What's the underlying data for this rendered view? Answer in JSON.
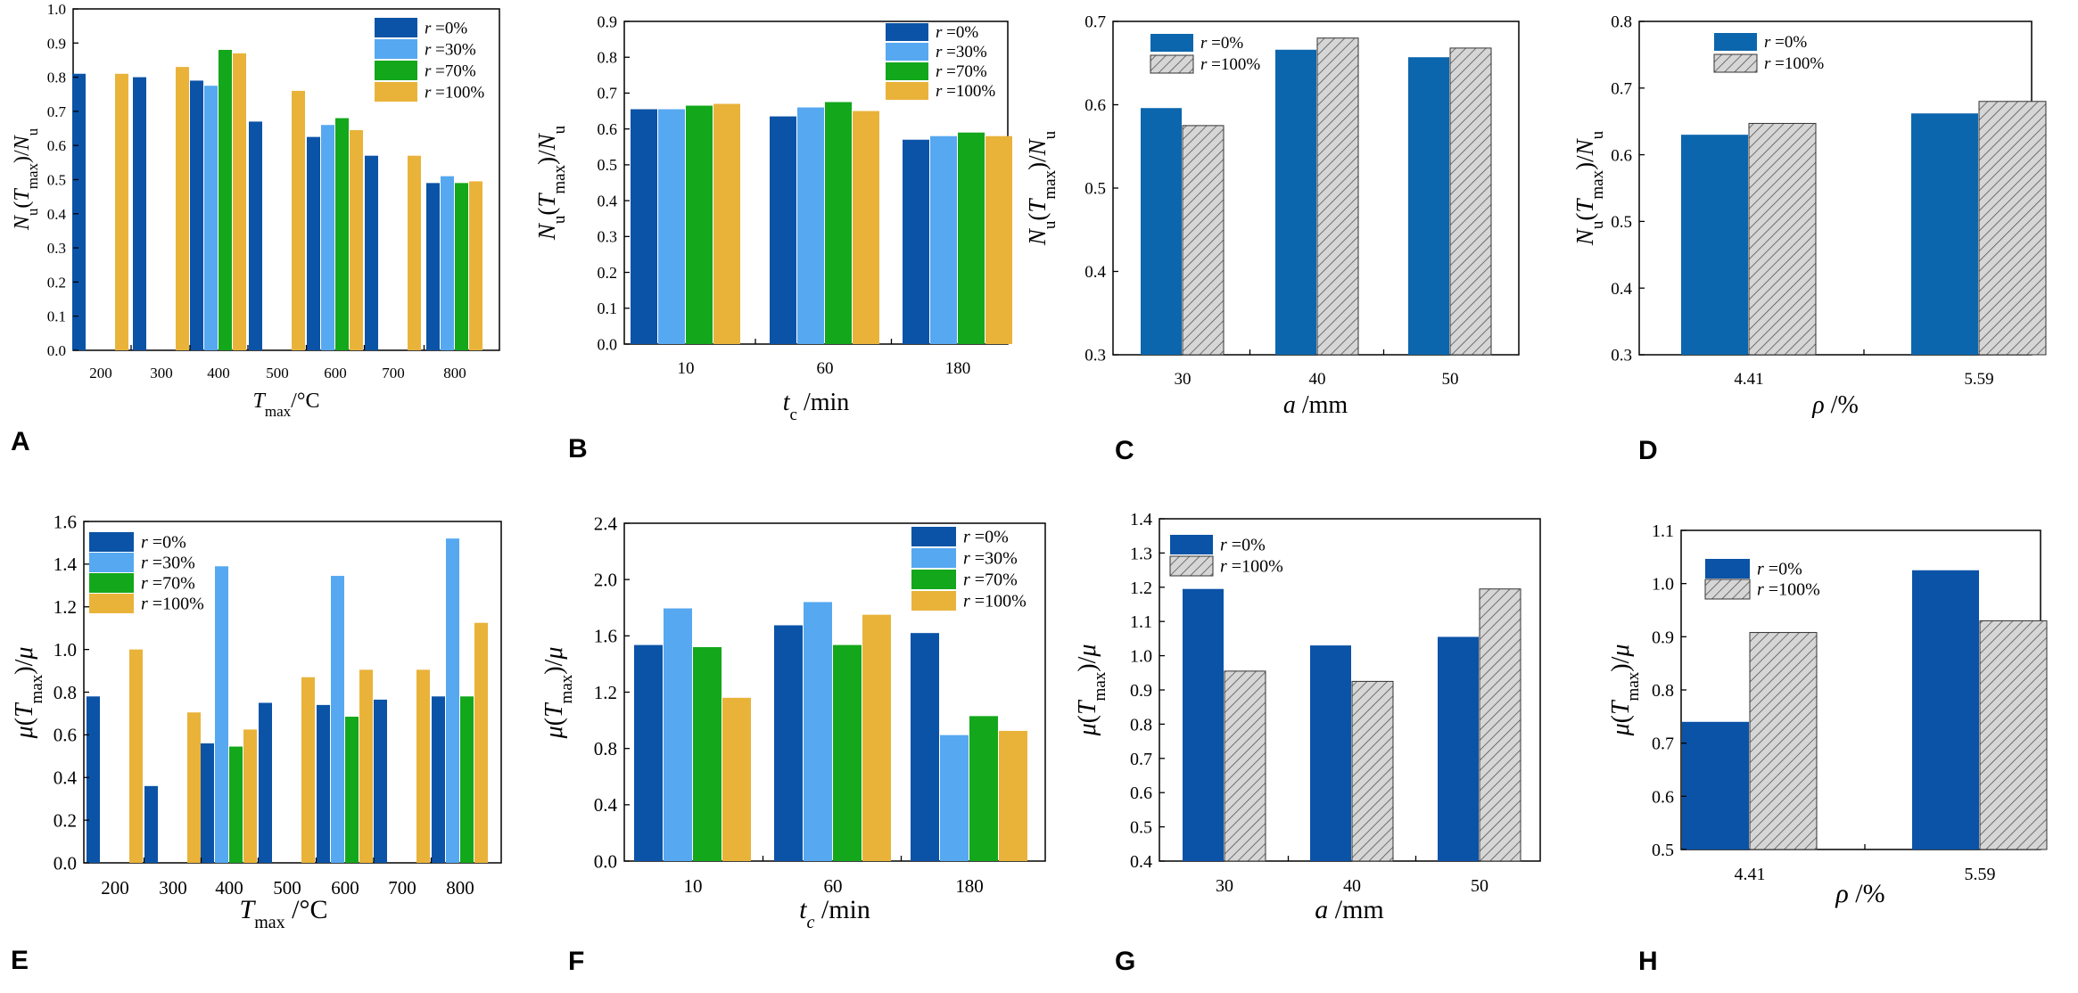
{
  "colors": {
    "dark_blue": "#0b53a7",
    "light_blue": "#56a8f1",
    "green": "#13a71b",
    "orange": "#e9b33a",
    "steel_blue": "#0b66ad",
    "hatch_fill": "#d6d6d6",
    "hatch_stroke": "#555555"
  },
  "chart_data": [
    {
      "panel": "A",
      "type": "bar",
      "ylabel": "N_u(T_max)/N_u",
      "xlabel": "T_max/°C",
      "ylim": [
        0,
        1.0
      ],
      "yticks": [
        "0.0",
        "0.1",
        "0.2",
        "0.3",
        "0.4",
        "0.5",
        "0.6",
        "0.7",
        "0.8",
        "0.9",
        "1.0"
      ],
      "categories": [
        "200",
        "300",
        "400",
        "500",
        "600",
        "700",
        "800"
      ],
      "legend_position": "top-right",
      "series": [
        {
          "name": "r =0%",
          "label": "0%",
          "color": "dark_blue",
          "values": [
            0.81,
            0.8,
            0.79,
            0.67,
            0.625,
            0.57,
            0.49
          ]
        },
        {
          "name": "r =30%",
          "label": "30%",
          "color": "light_blue",
          "values": [
            null,
            null,
            0.775,
            null,
            0.66,
            null,
            0.51
          ]
        },
        {
          "name": "r =70%",
          "label": "70%",
          "color": "green",
          "values": [
            null,
            null,
            0.88,
            null,
            0.68,
            null,
            0.49
          ]
        },
        {
          "name": "r =100%",
          "label": "100%",
          "color": "orange",
          "values": [
            0.81,
            0.83,
            0.87,
            0.76,
            0.645,
            0.57,
            0.495
          ]
        }
      ]
    },
    {
      "panel": "B",
      "type": "bar",
      "ylabel": "N_u(T_max)/N_u",
      "xlabel": "t_c /min",
      "ylim": [
        0,
        0.9
      ],
      "yticks": [
        "0.0",
        "0.1",
        "0.2",
        "0.3",
        "0.4",
        "0.5",
        "0.6",
        "0.7",
        "0.8",
        "0.9"
      ],
      "categories": [
        "10",
        "60",
        "180"
      ],
      "legend_position": "top-right",
      "series": [
        {
          "name": "r =0%",
          "label": "0%",
          "color": "dark_blue",
          "values": [
            0.655,
            0.635,
            0.57
          ]
        },
        {
          "name": "r =30%",
          "label": "30%",
          "color": "light_blue",
          "values": [
            0.655,
            0.66,
            0.58
          ]
        },
        {
          "name": "r =70%",
          "label": "70%",
          "color": "green",
          "values": [
            0.665,
            0.675,
            0.59
          ]
        },
        {
          "name": "r =100%",
          "label": "100%",
          "color": "orange",
          "values": [
            0.67,
            0.65,
            0.58
          ]
        }
      ]
    },
    {
      "panel": "C",
      "type": "bar",
      "ylabel": "N_u(T_max)/N_u",
      "xlabel": "a /mm",
      "ylim": [
        0.3,
        0.7
      ],
      "yticks": [
        "0.3",
        "0.4",
        "0.5",
        "0.6",
        "0.7"
      ],
      "categories": [
        "30",
        "40",
        "50"
      ],
      "legend_position": "top-left",
      "series": [
        {
          "name": "r =0%",
          "label": "0%",
          "color": "steel_blue",
          "values": [
            0.596,
            0.666,
            0.657
          ]
        },
        {
          "name": "r =100%",
          "label": "100%",
          "color": "hatch",
          "values": [
            0.575,
            0.68,
            0.668
          ]
        }
      ]
    },
    {
      "panel": "D",
      "type": "bar",
      "ylabel": "N_u(T_max)/N_u",
      "xlabel": "ρ /%",
      "ylim": [
        0.3,
        0.8
      ],
      "yticks": [
        "0.3",
        "0.4",
        "0.5",
        "0.6",
        "0.7",
        "0.8"
      ],
      "categories": [
        "4.41",
        "5.59"
      ],
      "legend_position": "top-left",
      "series": [
        {
          "name": "r =0%",
          "label": "0%",
          "color": "steel_blue",
          "values": [
            0.63,
            0.662
          ]
        },
        {
          "name": "r =100%",
          "label": "100%",
          "color": "hatch",
          "values": [
            0.647,
            0.68
          ]
        }
      ]
    },
    {
      "panel": "E",
      "type": "bar",
      "ylabel": "μ(T_max)/μ",
      "xlabel": "T_max /°C",
      "ylim": [
        0,
        1.6
      ],
      "yticks": [
        "0.0",
        "0.2",
        "0.4",
        "0.6",
        "0.8",
        "1.0",
        "1.2",
        "1.4",
        "1.6"
      ],
      "categories": [
        "200",
        "300",
        "400",
        "500",
        "600",
        "700",
        "800"
      ],
      "legend_position": "top-left",
      "series": [
        {
          "name": "r =0%",
          "label": "0%",
          "color": "dark_blue",
          "values": [
            0.78,
            0.36,
            0.56,
            0.75,
            0.74,
            0.765,
            0.78
          ]
        },
        {
          "name": "r =30%",
          "label": "30%",
          "color": "light_blue",
          "values": [
            null,
            null,
            1.39,
            null,
            1.345,
            null,
            1.52
          ]
        },
        {
          "name": "r =70%",
          "label": "70%",
          "color": "green",
          "values": [
            null,
            null,
            0.545,
            null,
            0.685,
            null,
            0.78
          ]
        },
        {
          "name": "r =100%",
          "label": "100%",
          "color": "orange",
          "values": [
            1.0,
            0.705,
            0.625,
            0.87,
            0.905,
            0.905,
            1.125
          ]
        }
      ]
    },
    {
      "panel": "F",
      "type": "bar",
      "ylabel": "μ(T_max)/μ",
      "xlabel": "t_c /min",
      "ylim": [
        0,
        2.4
      ],
      "yticks": [
        "0.0",
        "0.4",
        "0.8",
        "1.2",
        "1.6",
        "2.0",
        "2.4"
      ],
      "categories": [
        "10",
        "60",
        "180"
      ],
      "legend_position": "top-right",
      "series": [
        {
          "name": "r =0%",
          "label": "0%",
          "color": "dark_blue",
          "values": [
            1.535,
            1.675,
            1.62
          ]
        },
        {
          "name": "r =30%",
          "label": "30%",
          "color": "light_blue",
          "values": [
            1.795,
            1.84,
            0.895
          ]
        },
        {
          "name": "r =70%",
          "label": "70%",
          "color": "green",
          "values": [
            1.52,
            1.535,
            1.03
          ]
        },
        {
          "name": "r =100%",
          "label": "100%",
          "color": "orange",
          "values": [
            1.16,
            1.75,
            0.925
          ]
        }
      ]
    },
    {
      "panel": "G",
      "type": "bar",
      "ylabel": "μ(T_max)/μ",
      "xlabel": "a /mm",
      "ylim": [
        0.4,
        1.4
      ],
      "yticks": [
        "0.4",
        "0.5",
        "0.6",
        "0.7",
        "0.8",
        "0.9",
        "1.0",
        "1.1",
        "1.2",
        "1.3",
        "1.4"
      ],
      "categories": [
        "30",
        "40",
        "50"
      ],
      "legend_position": "top-left",
      "series": [
        {
          "name": "r =0%",
          "label": "0%",
          "color": "dark_blue",
          "values": [
            1.195,
            1.03,
            1.055
          ]
        },
        {
          "name": "r =100%",
          "label": "100%",
          "color": "hatch",
          "values": [
            0.955,
            0.925,
            1.195
          ]
        }
      ]
    },
    {
      "panel": "H",
      "type": "bar",
      "ylabel": "μ(T_max)/μ",
      "xlabel": "ρ /%",
      "ylim": [
        0.5,
        1.1
      ],
      "yticks": [
        "0.5",
        "0.6",
        "0.7",
        "0.8",
        "0.9",
        "1.0",
        "1.1"
      ],
      "categories": [
        "4.41",
        "5.59"
      ],
      "legend_position": "top-left",
      "series": [
        {
          "name": "r =0%",
          "label": "0%",
          "color": "dark_blue",
          "values": [
            0.74,
            1.025
          ]
        },
        {
          "name": "r =100%",
          "label": "100%",
          "color": "hatch",
          "values": [
            0.908,
            0.93
          ]
        }
      ]
    }
  ]
}
